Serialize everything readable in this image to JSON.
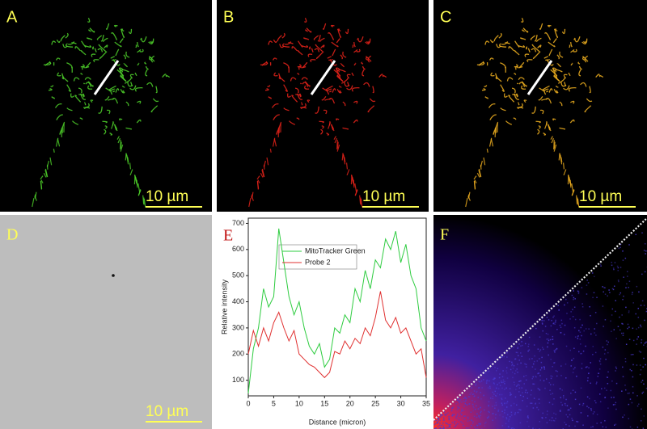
{
  "panels": [
    {
      "label": "A",
      "scale_bar": "10 µm"
    },
    {
      "label": "B",
      "scale_bar": "10 µm"
    },
    {
      "label": "C",
      "scale_bar": "10 µm"
    },
    {
      "label": "D",
      "scale_bar": "10 µm"
    },
    {
      "label": "E"
    },
    {
      "label": "F"
    }
  ],
  "chart_data": {
    "type": "line",
    "x_label": "Distance (micron)",
    "y_label": "Relative intensity",
    "x": [
      0,
      1,
      2,
      3,
      4,
      5,
      6,
      7,
      8,
      9,
      10,
      11,
      12,
      13,
      14,
      15,
      16,
      17,
      18,
      19,
      20,
      21,
      22,
      23,
      24,
      25,
      26,
      27,
      28,
      29,
      30,
      31,
      32,
      33,
      34,
      35
    ],
    "series": [
      {
        "name": "MitoTracker Green",
        "color": "#2ecc40",
        "values": [
          50,
          220,
          300,
          450,
          380,
          420,
          680,
          550,
          420,
          350,
          400,
          300,
          230,
          200,
          240,
          150,
          180,
          300,
          280,
          350,
          320,
          450,
          400,
          520,
          450,
          560,
          530,
          640,
          600,
          670,
          550,
          620,
          500,
          450,
          300,
          250
        ]
      },
      {
        "name": "Probe 2",
        "color": "#e03030",
        "values": [
          200,
          290,
          230,
          300,
          250,
          320,
          360,
          300,
          250,
          290,
          200,
          180,
          160,
          150,
          130,
          110,
          130,
          210,
          200,
          250,
          220,
          260,
          240,
          300,
          270,
          340,
          440,
          330,
          300,
          340,
          280,
          300,
          250,
          200,
          220,
          110
        ]
      }
    ],
    "xlim": [
      0,
      35
    ],
    "xticks": [
      0,
      5,
      10,
      15,
      20,
      25,
      30,
      35
    ],
    "ylim": [
      40,
      720
    ],
    "yticks": [
      100,
      200,
      300,
      400,
      500,
      600,
      700
    ]
  }
}
